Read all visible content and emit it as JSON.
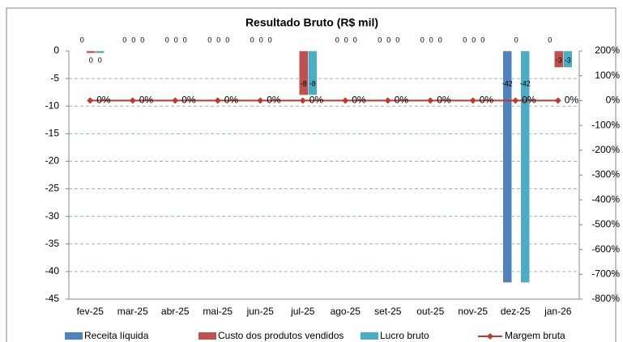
{
  "chart_data": {
    "type": "bar",
    "title": "Resultado Bruto (R$ mil)",
    "categories": [
      "fev-25",
      "mar-25",
      "abr-25",
      "mai-25",
      "jun-25",
      "jul-25",
      "ago-25",
      "set-25",
      "out-25",
      "nov-25",
      "dez-25",
      "jan-26"
    ],
    "series": [
      {
        "name": "Receita líquida",
        "color": "#4f81bd",
        "values": [
          0,
          0,
          0,
          0,
          0,
          0,
          0,
          0,
          0,
          0,
          -42,
          0
        ],
        "value_labels": [
          "0",
          "0",
          "0",
          "0",
          "0",
          null,
          "0",
          "0",
          "0",
          "0",
          "-42",
          "0"
        ]
      },
      {
        "name": "Custo dos produtos vendidos",
        "color": "#c0504d",
        "values": [
          -0.4,
          0,
          0,
          0,
          0,
          -8,
          0,
          0,
          0,
          0,
          0,
          -3
        ],
        "value_labels": [
          "0",
          "0",
          "0",
          "0",
          "0",
          "-8",
          "0",
          "0",
          "0",
          "0",
          "0",
          "-3"
        ]
      },
      {
        "name": "Lucro bruto",
        "color": "#4bacc6",
        "values": [
          -0.4,
          0,
          0,
          0,
          0,
          -8,
          0,
          0,
          0,
          0,
          -42,
          -3
        ],
        "value_labels": [
          "0",
          "0",
          "0",
          "0",
          "0",
          "-8",
          "0",
          "0",
          "0",
          "0",
          "-42",
          "-3"
        ]
      },
      {
        "name": "Margem bruta",
        "color": "#c0392b",
        "type": "line",
        "axis": "y2",
        "values": [
          0,
          0,
          0,
          0,
          0,
          0,
          0,
          0,
          0,
          0,
          0,
          0
        ],
        "value_labels": [
          "0%",
          "0%",
          "0%",
          "0%",
          "0%",
          "0%",
          "0%",
          "0%",
          "0%",
          "0%",
          "0%",
          "0%"
        ]
      }
    ],
    "ylim": [
      -45,
      0
    ],
    "yticks": [
      0,
      -5,
      -10,
      -15,
      -20,
      -25,
      -30,
      -35,
      -40,
      -45
    ],
    "y2lim": [
      -800,
      200
    ],
    "y2ticks": [
      {
        "value": 200,
        "label": "200%"
      },
      {
        "value": 100,
        "label": "100%"
      },
      {
        "value": 0,
        "label": "0%"
      },
      {
        "value": -100,
        "label": "-100%"
      },
      {
        "value": -200,
        "label": "-200%"
      },
      {
        "value": -300,
        "label": "-300%"
      },
      {
        "value": -400,
        "label": "-400%"
      },
      {
        "value": -500,
        "label": "-500%"
      },
      {
        "value": -600,
        "label": "-600%"
      },
      {
        "value": -700,
        "label": "-700%"
      },
      {
        "value": -800,
        "label": "-800%"
      }
    ],
    "grid": true,
    "legend": "bottom"
  }
}
